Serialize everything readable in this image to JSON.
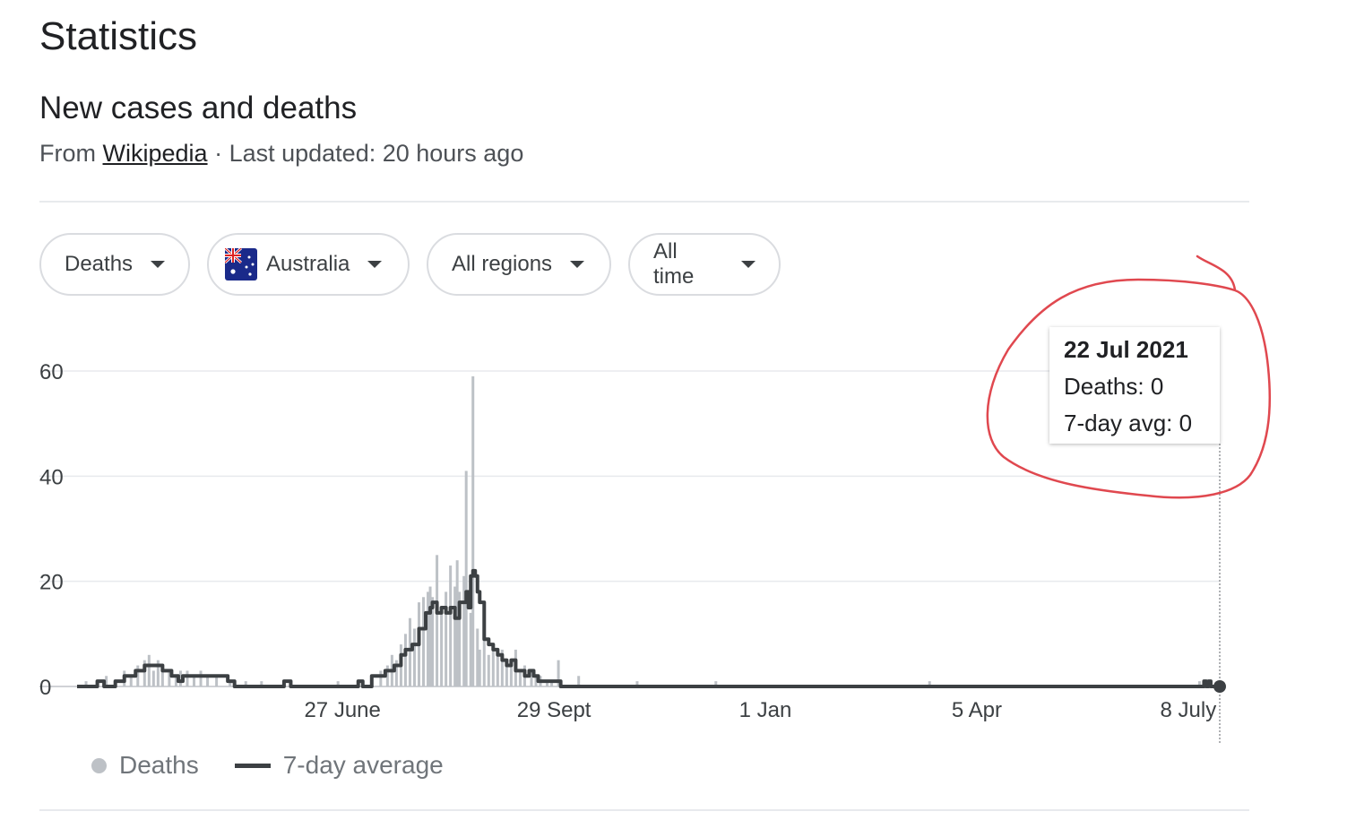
{
  "header": {
    "title": "Statistics",
    "subtitle": "New cases and deaths",
    "source_prefix": "From",
    "source_link": "Wikipedia",
    "updated": "· Last updated: 20 hours ago"
  },
  "filters": [
    {
      "label": "Deaths",
      "icon": "chevron-down-icon"
    },
    {
      "label": "Australia",
      "icon": "chevron-down-icon",
      "flag": "australia-flag-icon"
    },
    {
      "label": "All regions",
      "icon": "chevron-down-icon"
    },
    {
      "label": "All time",
      "icon": "chevron-down-icon"
    }
  ],
  "tooltip": {
    "date": "22 Jul 2021",
    "deaths_label": "Deaths: 0",
    "avg_label": "7-day avg: 0"
  },
  "legend": {
    "deaths": "Deaths",
    "average": "7-day average"
  },
  "colors": {
    "bars": "#bdc1c6",
    "line": "#3c4043",
    "annotation": "#e0484f",
    "grid": "#e8eaed"
  },
  "chart_data": {
    "type": "bar",
    "start_date": "2020-03-01",
    "end_date": "2021-07-22",
    "ylim": [
      0,
      60
    ],
    "y_ticks": [
      0,
      20,
      40,
      60
    ],
    "x_ticks": [
      {
        "date": "2020-06-27",
        "label": "27 June"
      },
      {
        "date": "2020-09-29",
        "label": "29 Sept"
      },
      {
        "date": "2021-01-01",
        "label": "1 Jan"
      },
      {
        "date": "2021-04-05",
        "label": "5 Apr"
      },
      {
        "date": "2021-07-08",
        "label": "8 July"
      }
    ],
    "series": [
      {
        "name": "Deaths",
        "kind": "bar",
        "points": [
          [
            "2020-03-05",
            1
          ],
          [
            "2020-03-10",
            1
          ],
          [
            "2020-03-14",
            2
          ],
          [
            "2020-03-18",
            1
          ],
          [
            "2020-03-22",
            3
          ],
          [
            "2020-03-25",
            2
          ],
          [
            "2020-03-28",
            4
          ],
          [
            "2020-03-31",
            5
          ],
          [
            "2020-04-02",
            6
          ],
          [
            "2020-04-04",
            3
          ],
          [
            "2020-04-06",
            5
          ],
          [
            "2020-04-08",
            4
          ],
          [
            "2020-04-11",
            3
          ],
          [
            "2020-04-14",
            2
          ],
          [
            "2020-04-16",
            3
          ],
          [
            "2020-04-19",
            3
          ],
          [
            "2020-04-22",
            2
          ],
          [
            "2020-04-25",
            3
          ],
          [
            "2020-04-28",
            2
          ],
          [
            "2020-05-02",
            2
          ],
          [
            "2020-05-08",
            1
          ],
          [
            "2020-05-15",
            1
          ],
          [
            "2020-05-22",
            1
          ],
          [
            "2020-06-04",
            1
          ],
          [
            "2020-06-25",
            1
          ],
          [
            "2020-07-06",
            1
          ],
          [
            "2020-07-10",
            2
          ],
          [
            "2020-07-14",
            3
          ],
          [
            "2020-07-17",
            4
          ],
          [
            "2020-07-19",
            6
          ],
          [
            "2020-07-21",
            5
          ],
          [
            "2020-07-23",
            8
          ],
          [
            "2020-07-25",
            10
          ],
          [
            "2020-07-27",
            13
          ],
          [
            "2020-07-29",
            11
          ],
          [
            "2020-07-31",
            16
          ],
          [
            "2020-08-02",
            17
          ],
          [
            "2020-08-04",
            18
          ],
          [
            "2020-08-05",
            19
          ],
          [
            "2020-08-06",
            17
          ],
          [
            "2020-08-08",
            25
          ],
          [
            "2020-08-10",
            15
          ],
          [
            "2020-08-12",
            18
          ],
          [
            "2020-08-14",
            23
          ],
          [
            "2020-08-16",
            19
          ],
          [
            "2020-08-17",
            24
          ],
          [
            "2020-08-18",
            18
          ],
          [
            "2020-08-20",
            21
          ],
          [
            "2020-08-21",
            41
          ],
          [
            "2020-08-23",
            14
          ],
          [
            "2020-08-24",
            59
          ],
          [
            "2020-08-26",
            11
          ],
          [
            "2020-08-27",
            7
          ],
          [
            "2020-08-29",
            9
          ],
          [
            "2020-08-31",
            6
          ],
          [
            "2020-09-02",
            8
          ],
          [
            "2020-09-04",
            6
          ],
          [
            "2020-09-06",
            7
          ],
          [
            "2020-09-08",
            5
          ],
          [
            "2020-09-10",
            4
          ],
          [
            "2020-09-12",
            7
          ],
          [
            "2020-09-14",
            3
          ],
          [
            "2020-09-16",
            4
          ],
          [
            "2020-09-19",
            3
          ],
          [
            "2020-09-21",
            2
          ],
          [
            "2020-09-23",
            2
          ],
          [
            "2020-09-26",
            1
          ],
          [
            "2020-09-28",
            1
          ],
          [
            "2020-10-01",
            5
          ],
          [
            "2020-10-10",
            2
          ],
          [
            "2020-11-05",
            1
          ],
          [
            "2020-12-10",
            1
          ],
          [
            "2021-03-15",
            1
          ],
          [
            "2021-07-13",
            1
          ],
          [
            "2021-07-15",
            1
          ],
          [
            "2021-07-17",
            1
          ]
        ]
      },
      {
        "name": "7-day average",
        "kind": "line",
        "points": [
          [
            "2020-03-01",
            0
          ],
          [
            "2020-03-08",
            0
          ],
          [
            "2020-03-10",
            1
          ],
          [
            "2020-03-13",
            0
          ],
          [
            "2020-03-18",
            1
          ],
          [
            "2020-03-22",
            2
          ],
          [
            "2020-03-27",
            3
          ],
          [
            "2020-03-31",
            4
          ],
          [
            "2020-04-05",
            4
          ],
          [
            "2020-04-08",
            3
          ],
          [
            "2020-04-12",
            2
          ],
          [
            "2020-04-15",
            1
          ],
          [
            "2020-04-17",
            2
          ],
          [
            "2020-04-26",
            2
          ],
          [
            "2020-05-03",
            2
          ],
          [
            "2020-05-07",
            1
          ],
          [
            "2020-05-10",
            0
          ],
          [
            "2020-05-26",
            0
          ],
          [
            "2020-06-01",
            1
          ],
          [
            "2020-06-04",
            0
          ],
          [
            "2020-07-01",
            0
          ],
          [
            "2020-07-04",
            1
          ],
          [
            "2020-07-06",
            0
          ],
          [
            "2020-07-10",
            2
          ],
          [
            "2020-07-14",
            2
          ],
          [
            "2020-07-16",
            3
          ],
          [
            "2020-07-20",
            4
          ],
          [
            "2020-07-23",
            6
          ],
          [
            "2020-07-25",
            7
          ],
          [
            "2020-07-28",
            8
          ],
          [
            "2020-07-31",
            11
          ],
          [
            "2020-08-03",
            14
          ],
          [
            "2020-08-05",
            15
          ],
          [
            "2020-08-06",
            16
          ],
          [
            "2020-08-08",
            14
          ],
          [
            "2020-08-10",
            15
          ],
          [
            "2020-08-12",
            14
          ],
          [
            "2020-08-14",
            15
          ],
          [
            "2020-08-16",
            13
          ],
          [
            "2020-08-18",
            16
          ],
          [
            "2020-08-20",
            16
          ],
          [
            "2020-08-21",
            18
          ],
          [
            "2020-08-22",
            15
          ],
          [
            "2020-08-23",
            21
          ],
          [
            "2020-08-24",
            22
          ],
          [
            "2020-08-25",
            21
          ],
          [
            "2020-08-26",
            18
          ],
          [
            "2020-08-27",
            16
          ],
          [
            "2020-08-29",
            9
          ],
          [
            "2020-08-31",
            8
          ],
          [
            "2020-09-02",
            7
          ],
          [
            "2020-09-04",
            6
          ],
          [
            "2020-09-06",
            5
          ],
          [
            "2020-09-08",
            4
          ],
          [
            "2020-09-10",
            5
          ],
          [
            "2020-09-12",
            3
          ],
          [
            "2020-09-14",
            3
          ],
          [
            "2020-09-16",
            2
          ],
          [
            "2020-09-18",
            3
          ],
          [
            "2020-09-20",
            2
          ],
          [
            "2020-09-22",
            1
          ],
          [
            "2020-09-28",
            1
          ],
          [
            "2020-10-02",
            0
          ],
          [
            "2021-07-14",
            0
          ],
          [
            "2021-07-15",
            1
          ],
          [
            "2021-07-16",
            0
          ],
          [
            "2021-07-17",
            1
          ],
          [
            "2021-07-18",
            0
          ],
          [
            "2021-07-22",
            0
          ]
        ]
      }
    ],
    "highlight": {
      "date": "2021-07-22",
      "deaths": 0,
      "avg": 0
    }
  }
}
